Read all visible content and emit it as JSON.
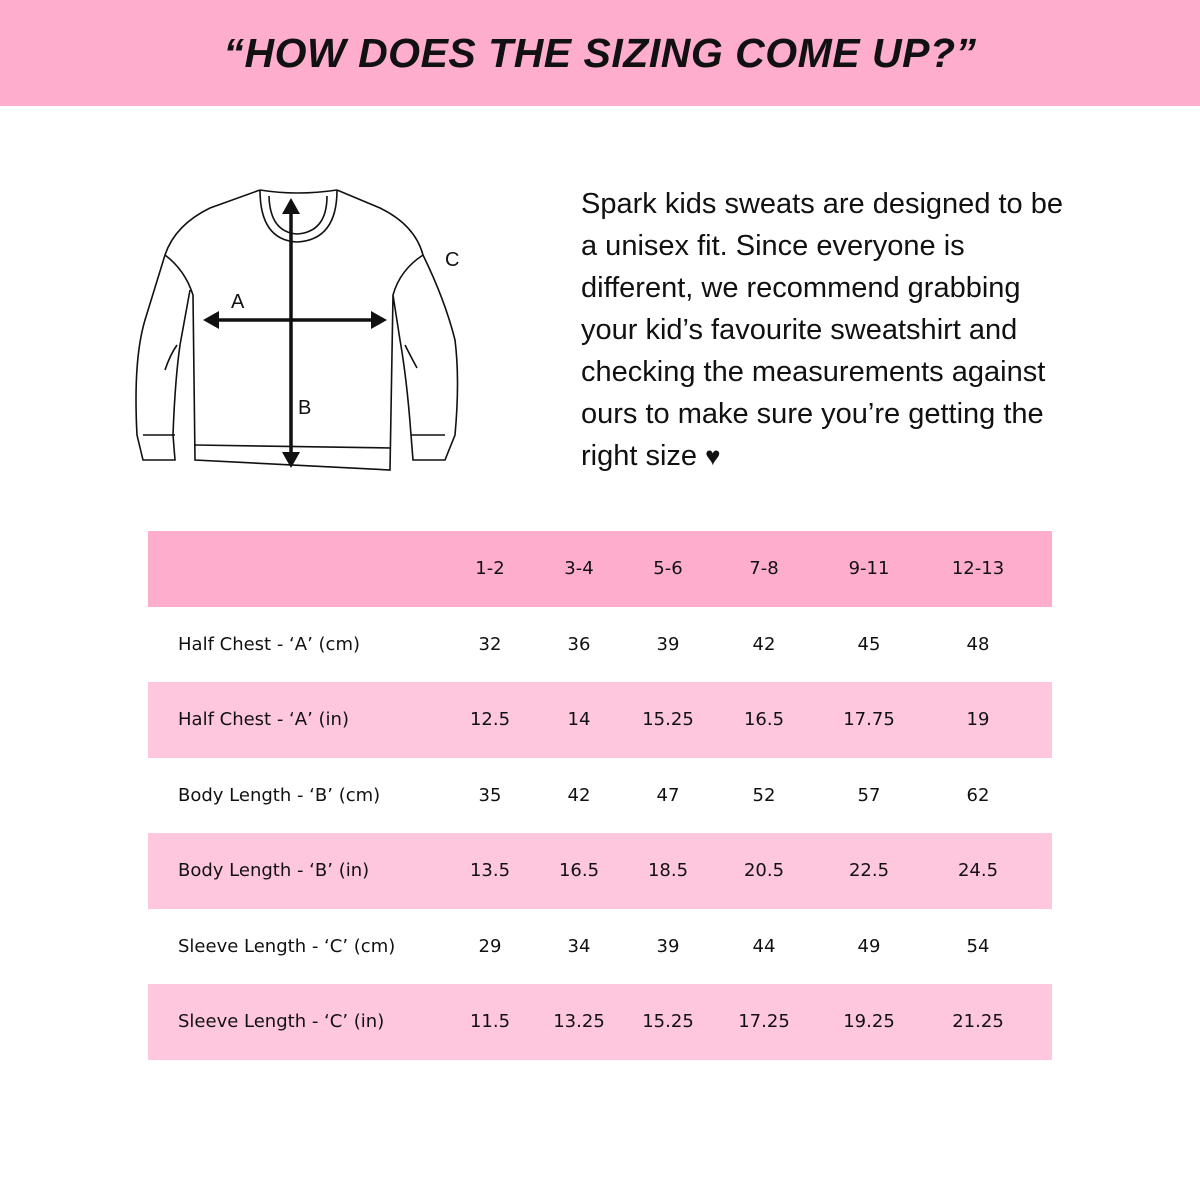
{
  "title": "“HOW DOES THE SIZING COME UP?”",
  "diagram_labels": {
    "a": "A",
    "b": "B",
    "c": "C"
  },
  "intro": "Spark kids sweats are designed to be a unisex fit. Since everyone is different, we recommend grabbing your kid’s favourite sweatshirt and checking the measurements against ours to make sure you’re getting the right size",
  "intro_icon": "heart-icon",
  "colors": {
    "banner": "#ffadcc",
    "header_row": "#ffadcd",
    "alt_row": "#ffc7dd"
  },
  "table": {
    "columns": [
      "1-2",
      "3-4",
      "5-6",
      "7-8",
      "9-11",
      "12-13"
    ],
    "rows": [
      {
        "label": "Half Chest - ‘A’ (cm)",
        "values": [
          "32",
          "36",
          "39",
          "42",
          "45",
          "48"
        ]
      },
      {
        "label": "Half Chest - ‘A’ (in)",
        "values": [
          "12.5",
          "14",
          "15.25",
          "16.5",
          "17.75",
          "19"
        ]
      },
      {
        "label": "Body Length - ‘B’ (cm)",
        "values": [
          "35",
          "42",
          "47",
          "52",
          "57",
          "62"
        ]
      },
      {
        "label": "Body Length - ‘B’ (in)",
        "values": [
          "13.5",
          "16.5",
          "18.5",
          "20.5",
          "22.5",
          "24.5"
        ]
      },
      {
        "label": "Sleeve Length - ‘C’ (cm)",
        "values": [
          "29",
          "34",
          "39",
          "44",
          "49",
          "54"
        ]
      },
      {
        "label": "Sleeve Length - ‘C’ (in)",
        "values": [
          "11.5",
          "13.25",
          "15.25",
          "17.25",
          "19.25",
          "21.25"
        ]
      }
    ]
  }
}
